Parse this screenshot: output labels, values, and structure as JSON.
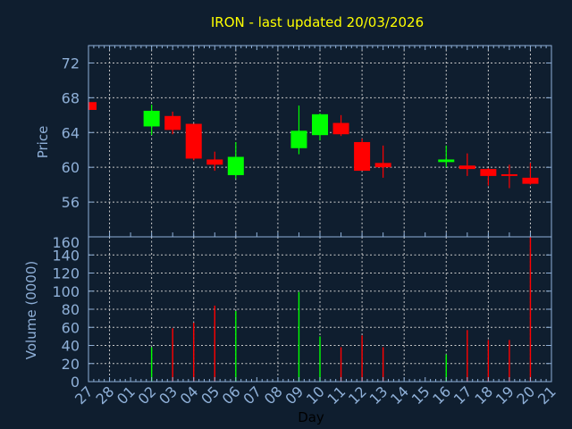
{
  "chart_data": [
    {
      "type": "candlestick",
      "title": "IRON - last updated 20/03/2026",
      "ylabel": "Price",
      "ylim": [
        52,
        74
      ],
      "yticks": [
        56,
        60,
        64,
        68,
        72
      ],
      "grid": true,
      "colors": {
        "up": "#00ff00",
        "down": "#ff0000"
      },
      "candles": [
        {
          "day": "27",
          "open": 67.5,
          "high": 67.5,
          "low": 66.6,
          "close": 66.6
        },
        {
          "day": "02",
          "open": 64.7,
          "high": 67.2,
          "low": 63.7,
          "close": 66.5
        },
        {
          "day": "03",
          "open": 65.9,
          "high": 66.4,
          "low": 63.8,
          "close": 64.3
        },
        {
          "day": "04",
          "open": 65.0,
          "high": 65.0,
          "low": 60.8,
          "close": 61.0
        },
        {
          "day": "05",
          "open": 60.9,
          "high": 61.8,
          "low": 59.6,
          "close": 60.3
        },
        {
          "day": "06",
          "open": 59.1,
          "high": 62.9,
          "low": 58.7,
          "close": 61.2
        },
        {
          "day": "09",
          "open": 62.2,
          "high": 67.1,
          "low": 61.5,
          "close": 64.2
        },
        {
          "day": "10",
          "open": 63.7,
          "high": 66.2,
          "low": 63.1,
          "close": 66.1
        },
        {
          "day": "11",
          "open": 65.1,
          "high": 66.0,
          "low": 63.6,
          "close": 63.8
        },
        {
          "day": "12",
          "open": 62.9,
          "high": 63.3,
          "low": 59.6,
          "close": 59.6
        },
        {
          "day": "13",
          "open": 60.5,
          "high": 62.5,
          "low": 58.8,
          "close": 60.0
        },
        {
          "day": "16",
          "open": 60.6,
          "high": 62.5,
          "low": 60.0,
          "close": 60.9
        },
        {
          "day": "17",
          "open": 60.2,
          "high": 61.6,
          "low": 59.0,
          "close": 59.8
        },
        {
          "day": "18",
          "open": 59.8,
          "high": 59.9,
          "low": 57.9,
          "close": 59.0
        },
        {
          "day": "19",
          "open": 59.2,
          "high": 60.3,
          "low": 57.6,
          "close": 59.0
        },
        {
          "day": "20",
          "open": 58.8,
          "high": 60.5,
          "low": 58.0,
          "close": 58.1
        }
      ]
    },
    {
      "type": "bar",
      "ylabel": "Volume (0000)",
      "xlabel": "Day",
      "ylim": [
        0,
        160
      ],
      "yticks": [
        0,
        20,
        40,
        60,
        80,
        100,
        120,
        140,
        160
      ],
      "grid": true,
      "categories": [
        "27",
        "28",
        "01",
        "02",
        "03",
        "04",
        "05",
        "06",
        "07",
        "08",
        "09",
        "10",
        "11",
        "12",
        "13",
        "14",
        "15",
        "16",
        "17",
        "18",
        "19",
        "20",
        "21"
      ],
      "bars": [
        {
          "day": "02",
          "value": 38,
          "color": "#00ff00"
        },
        {
          "day": "03",
          "value": 59,
          "color": "#ff0000"
        },
        {
          "day": "04",
          "value": 65,
          "color": "#ff0000"
        },
        {
          "day": "05",
          "value": 84,
          "color": "#ff0000"
        },
        {
          "day": "06",
          "value": 78,
          "color": "#00ff00"
        },
        {
          "day": "09",
          "value": 99,
          "color": "#00ff00"
        },
        {
          "day": "10",
          "value": 50,
          "color": "#00ff00"
        },
        {
          "day": "11",
          "value": 38,
          "color": "#ff0000"
        },
        {
          "day": "12",
          "value": 51,
          "color": "#ff0000"
        },
        {
          "day": "13",
          "value": 38,
          "color": "#ff0000"
        },
        {
          "day": "16",
          "value": 30,
          "color": "#00ff00"
        },
        {
          "day": "17",
          "value": 57,
          "color": "#ff0000"
        },
        {
          "day": "18",
          "value": 46,
          "color": "#ff0000"
        },
        {
          "day": "19",
          "value": 46,
          "color": "#ff0000"
        },
        {
          "day": "20",
          "value": 160,
          "color": "#ff0000"
        }
      ]
    }
  ],
  "colors": {
    "background": "#0f1e2f",
    "axis": "#8fb0d8",
    "title": "#ffff00",
    "grid": "#c8c8c8",
    "xlabel": "#000000"
  }
}
